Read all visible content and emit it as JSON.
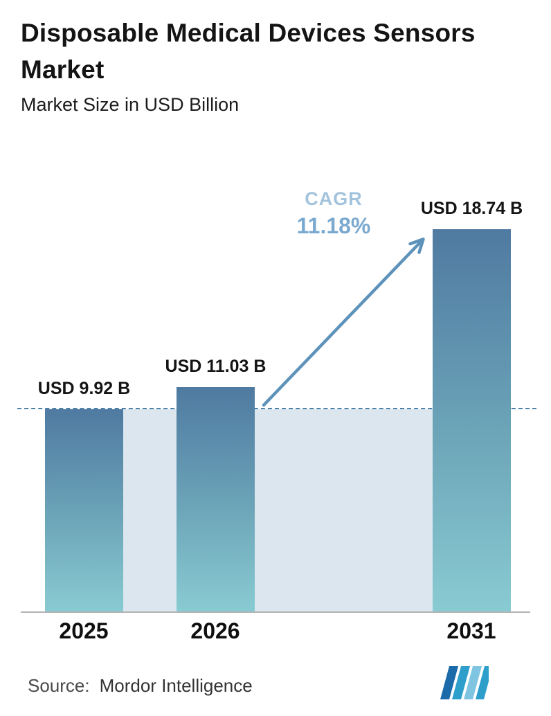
{
  "title": "Disposable Medical Devices Sensors Market",
  "subtitle": "Market Size in USD Billion",
  "cagr": {
    "label": "CAGR",
    "value": "11.18%"
  },
  "source": {
    "label": "Source:",
    "value": "Mordor Intelligence"
  },
  "logo": "mordor-intelligence-logo",
  "colors": {
    "bar_gradient_top": "#4f7aa1",
    "bar_gradient_bottom": "#89cbd2",
    "shaded_region": "#dbe6ee",
    "dashed_line": "#4e81a8",
    "arrow": "#5d92ba",
    "cagr_label": "#a3c3dc",
    "cagr_value": "#7aa9d0",
    "axis_line": "#b3b3b3",
    "text": "#141414"
  },
  "chart_data": {
    "type": "bar",
    "title": "Disposable Medical Devices Sensors Market",
    "subtitle": "Market Size in USD Billion",
    "unit": "USD Billion",
    "categories": [
      "2025",
      "2026",
      "2031"
    ],
    "values": [
      9.92,
      11.03,
      18.74
    ],
    "value_labels": [
      "USD 9.92 B",
      "USD 11.03 B",
      "USD 18.74 B"
    ],
    "cagr_percent": 11.18,
    "ylim": [
      0,
      20
    ],
    "grid": false,
    "legend": "none",
    "annotations": [
      "CAGR 11.18% growth arrow from 2026 to 2031",
      "dashed horizontal reference line at 2025 value"
    ]
  }
}
